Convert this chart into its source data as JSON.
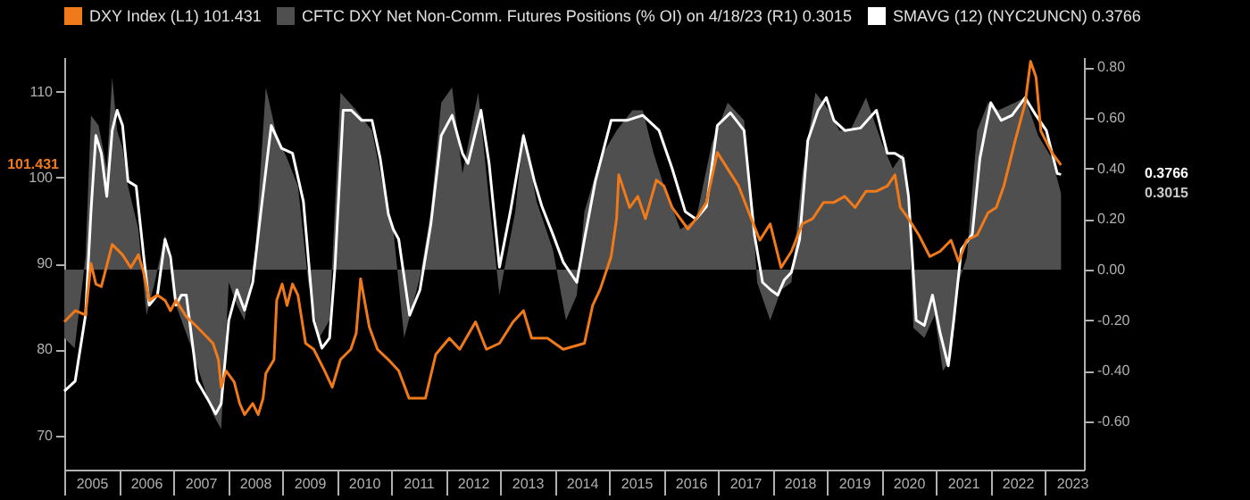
{
  "chart_data": {
    "type": "line",
    "legend": "top left",
    "grid": false,
    "xlim": [
      2005,
      2023.72
    ],
    "xticks": [
      {
        "value": 2005,
        "label": null
      },
      {
        "value": 2005.5,
        "label": "2005"
      },
      {
        "value": 2006,
        "label": null
      },
      {
        "value": 2006.5,
        "label": "2006"
      },
      {
        "value": 2007,
        "label": null
      },
      {
        "value": 2007.5,
        "label": "2007"
      },
      {
        "value": 2008,
        "label": null
      },
      {
        "value": 2008.5,
        "label": "2008"
      },
      {
        "value": 2009,
        "label": null
      },
      {
        "value": 2009.5,
        "label": "2009"
      },
      {
        "value": 2010,
        "label": null
      },
      {
        "value": 2010.5,
        "label": "2010"
      },
      {
        "value": 2011,
        "label": null
      },
      {
        "value": 2011.5,
        "label": "2011"
      },
      {
        "value": 2012,
        "label": null
      },
      {
        "value": 2012.5,
        "label": "2012"
      },
      {
        "value": 2013,
        "label": null
      },
      {
        "value": 2013.5,
        "label": "2013"
      },
      {
        "value": 2014,
        "label": null
      },
      {
        "value": 2014.5,
        "label": "2014"
      },
      {
        "value": 2015,
        "label": null
      },
      {
        "value": 2015.5,
        "label": "2015"
      },
      {
        "value": 2016,
        "label": null
      },
      {
        "value": 2016.5,
        "label": "2016"
      },
      {
        "value": 2017,
        "label": null
      },
      {
        "value": 2017.5,
        "label": "2017"
      },
      {
        "value": 2018,
        "label": null
      },
      {
        "value": 2018.5,
        "label": "2018"
      },
      {
        "value": 2019,
        "label": null
      },
      {
        "value": 2019.5,
        "label": "2019"
      },
      {
        "value": 2020,
        "label": null
      },
      {
        "value": 2020.5,
        "label": "2020"
      },
      {
        "value": 2021,
        "label": null
      },
      {
        "value": 2021.5,
        "label": "2021"
      },
      {
        "value": 2022,
        "label": null
      },
      {
        "value": 2022.5,
        "label": "2022"
      },
      {
        "value": 2023,
        "label": null
      },
      {
        "value": 2023.5,
        "label": "2023"
      }
    ],
    "ylim": [
      66,
      114
    ],
    "yticks": [
      70,
      80,
      90,
      100,
      110
    ],
    "y2lim": [
      -0.79,
      0.84
    ],
    "y2ticks": [
      {
        "value": -0.6,
        "label": "-0.60"
      },
      {
        "value": -0.4,
        "label": "-0.40"
      },
      {
        "value": -0.2,
        "label": "-0.20"
      },
      {
        "value": 0,
        "label": "0.00"
      },
      {
        "value": 0.2,
        "label": "0.20"
      },
      {
        "value": 0.4,
        "label": "0.40"
      },
      {
        "value": 0.6,
        "label": "0.60"
      },
      {
        "value": 0.8,
        "label": "0.80"
      }
    ],
    "annotations": [
      "101.431",
      "0.3015",
      "0.3766"
    ],
    "series": [
      {
        "name": "DXY Index (L1) 101.431",
        "color": "#f07a1a",
        "x": [
          2005.0,
          2005.2,
          2005.39,
          2005.49,
          2005.58,
          2005.68,
          2005.88,
          2006.07,
          2006.22,
          2006.36,
          2006.46,
          2006.56,
          2006.71,
          2006.85,
          2006.95,
          2007.05,
          2007.24,
          2007.44,
          2007.73,
          2007.83,
          2007.88,
          2007.97,
          2008.12,
          2008.22,
          2008.31,
          2008.46,
          2008.56,
          2008.65,
          2008.7,
          2008.85,
          2008.9,
          2009.0,
          2009.09,
          2009.19,
          2009.29,
          2009.43,
          2009.58,
          2009.78,
          2009.92,
          2010.07,
          2010.26,
          2010.36,
          2010.44,
          2010.6,
          2010.75,
          2010.95,
          2011.14,
          2011.33,
          2011.63,
          2011.82,
          2012.07,
          2012.26,
          2012.55,
          2012.75,
          2012.99,
          2013.24,
          2013.43,
          2013.58,
          2013.87,
          2014.16,
          2014.55,
          2014.7,
          2014.84,
          2015.04,
          2015.14,
          2015.18,
          2015.38,
          2015.53,
          2015.67,
          2015.87,
          2016.01,
          2016.16,
          2016.31,
          2016.45,
          2016.6,
          2016.79,
          2016.99,
          2017.18,
          2017.38,
          2017.57,
          2017.77,
          2017.96,
          2018.16,
          2018.35,
          2018.55,
          2018.74,
          2018.94,
          2019.13,
          2019.33,
          2019.52,
          2019.72,
          2019.91,
          2020.11,
          2020.25,
          2020.35,
          2020.5,
          2020.69,
          2020.89,
          2021.08,
          2021.28,
          2021.42,
          2021.57,
          2021.76,
          2021.96,
          2022.11,
          2022.25,
          2022.45,
          2022.64,
          2022.74,
          2022.84,
          2022.93,
          2023.13,
          2023.3
        ],
        "values": [
          83.2,
          84.5,
          84,
          90,
          87.6,
          87.3,
          92.2,
          91,
          89.5,
          91,
          88.9,
          85.7,
          86.3,
          85.7,
          84.5,
          85.7,
          83.8,
          82.6,
          80.7,
          78.8,
          75.6,
          77.5,
          76.2,
          73.7,
          72.4,
          73.7,
          72.4,
          74.3,
          77.2,
          78.8,
          85.7,
          87.6,
          85.1,
          87.6,
          86.3,
          80.7,
          80,
          77.5,
          75.6,
          78.8,
          80,
          81.9,
          88.2,
          82.6,
          80,
          78.8,
          77.5,
          74.3,
          74.3,
          79.4,
          81.3,
          80,
          83.2,
          80,
          80.7,
          83.2,
          84.5,
          81.3,
          81.3,
          80,
          80.7,
          85.1,
          87,
          90.8,
          95.2,
          100.3,
          96.5,
          97.8,
          95.2,
          99.7,
          99,
          96.5,
          95.2,
          94,
          95.2,
          97.1,
          102.9,
          101,
          99,
          95.9,
          92.7,
          94.6,
          89.5,
          91.4,
          94.6,
          95.2,
          97.1,
          97.1,
          97.8,
          96.5,
          98.4,
          98.4,
          99,
          100.3,
          96.5,
          95.2,
          93.3,
          90.8,
          91.4,
          92.7,
          90.2,
          92.7,
          93.3,
          95.9,
          96.5,
          99,
          104.1,
          108.6,
          113.5,
          111.7,
          105.4,
          102.9,
          101.431
        ]
      },
      {
        "name": "CFTC DXY Net Non-Comm. Futures Positions (% OI) on 4/18/23 (R1) 0.3015",
        "type": "area",
        "axis": "y2",
        "color": "#4f4f4f",
        "x": [
          2005.0,
          2005.19,
          2005.39,
          2005.49,
          2005.63,
          2005.78,
          2005.88,
          2005.97,
          2006.07,
          2006.17,
          2006.36,
          2006.51,
          2006.66,
          2006.85,
          2007.05,
          2007.34,
          2007.53,
          2007.73,
          2007.88,
          2008.02,
          2008.17,
          2008.31,
          2008.51,
          2008.7,
          2008.9,
          2009.09,
          2009.29,
          2009.48,
          2009.68,
          2009.87,
          2010.07,
          2010.36,
          2010.65,
          2010.85,
          2011.04,
          2011.24,
          2011.53,
          2011.73,
          2011.92,
          2012.12,
          2012.31,
          2012.6,
          2012.8,
          2012.99,
          2013.28,
          2013.43,
          2013.67,
          2013.97,
          2014.21,
          2014.41,
          2014.55,
          2014.84,
          2015.14,
          2015.43,
          2015.62,
          2015.82,
          2016.01,
          2016.31,
          2016.6,
          2016.89,
          2017.18,
          2017.48,
          2017.67,
          2017.72,
          2017.96,
          2018.16,
          2018.35,
          2018.55,
          2018.79,
          2019.04,
          2019.23,
          2019.43,
          2019.72,
          2020.01,
          2020.21,
          2020.4,
          2020.5,
          2020.59,
          2020.79,
          2020.98,
          2021.13,
          2021.28,
          2021.42,
          2021.57,
          2021.76,
          2021.96,
          2022.15,
          2022.45,
          2022.64,
          2022.88,
          2023.13,
          2023.3
        ],
        "values": [
          -0.27,
          -0.31,
          0.05,
          0.61,
          0.57,
          0.4,
          0.76,
          0.55,
          0.48,
          0.33,
          0.16,
          -0.18,
          -0.05,
          0.14,
          -0.14,
          -0.31,
          -0.44,
          -0.57,
          -0.63,
          -0.05,
          -0.14,
          -0.2,
          0.08,
          0.72,
          0.53,
          0.44,
          0.33,
          -0.05,
          -0.27,
          -0.2,
          0.7,
          0.63,
          0.55,
          0.33,
          0.16,
          -0.27,
          -0.03,
          0.23,
          0.66,
          0.72,
          0.38,
          0.7,
          0.27,
          -0.1,
          0.23,
          0.55,
          0.27,
          0.08,
          -0.2,
          -0.1,
          0.23,
          0.44,
          0.55,
          0.63,
          0.63,
          0.46,
          0.33,
          0.16,
          0.2,
          0.5,
          0.66,
          0.59,
          0.12,
          -0.05,
          -0.2,
          -0.08,
          -0.05,
          0.38,
          0.7,
          0.63,
          0.55,
          0.55,
          0.68,
          0.5,
          0.4,
          0.46,
          0.25,
          -0.23,
          -0.27,
          -0.18,
          -0.4,
          -0.35,
          -0.05,
          0.05,
          0.55,
          0.66,
          0.63,
          0.66,
          0.68,
          0.53,
          0.44,
          0.3015
        ]
      },
      {
        "name": "SMAVG (12) (NYC2UNCN) 0.3766",
        "type": "line",
        "axis": "y2",
        "color": "#ffffff",
        "x": [
          2005.0,
          2005.2,
          2005.39,
          2005.49,
          2005.58,
          2005.68,
          2005.78,
          2005.88,
          2005.97,
          2006.07,
          2006.17,
          2006.32,
          2006.46,
          2006.56,
          2006.71,
          2006.85,
          2006.95,
          2007.05,
          2007.15,
          2007.24,
          2007.44,
          2007.63,
          2007.78,
          2007.88,
          2008.02,
          2008.17,
          2008.31,
          2008.46,
          2008.61,
          2008.8,
          2008.99,
          2009.19,
          2009.39,
          2009.58,
          2009.73,
          2009.87,
          2009.97,
          2010.12,
          2010.27,
          2010.46,
          2010.65,
          2010.8,
          2010.95,
          2011.04,
          2011.14,
          2011.34,
          2011.53,
          2011.73,
          2011.92,
          2012.12,
          2012.31,
          2012.41,
          2012.65,
          2012.8,
          2012.99,
          2013.19,
          2013.43,
          2013.63,
          2013.77,
          2013.97,
          2014.16,
          2014.41,
          2014.55,
          2014.75,
          2015.04,
          2015.33,
          2015.62,
          2015.92,
          2016.16,
          2016.4,
          2016.6,
          2016.79,
          2016.99,
          2017.23,
          2017.48,
          2017.67,
          2017.82,
          2017.97,
          2018.1,
          2018.22,
          2018.35,
          2018.5,
          2018.65,
          2018.84,
          2018.99,
          2019.13,
          2019.33,
          2019.62,
          2019.91,
          2020.11,
          2020.25,
          2020.4,
          2020.5,
          2020.64,
          2020.79,
          2020.94,
          2021.08,
          2021.23,
          2021.33,
          2021.47,
          2021.67,
          2021.81,
          2022.01,
          2022.2,
          2022.4,
          2022.64,
          2022.84,
          2023.03,
          2023.23,
          2023.3
        ],
        "values": [
          -0.48,
          -0.44,
          -0.18,
          0.23,
          0.53,
          0.46,
          0.29,
          0.55,
          0.63,
          0.57,
          0.35,
          0.33,
          0.05,
          -0.14,
          -0.1,
          0.12,
          0.05,
          -0.14,
          -0.1,
          -0.1,
          -0.44,
          -0.51,
          -0.57,
          -0.53,
          -0.2,
          -0.08,
          -0.16,
          -0.05,
          0.23,
          0.57,
          0.48,
          0.46,
          0.27,
          -0.2,
          -0.31,
          -0.27,
          0.01,
          0.63,
          0.63,
          0.59,
          0.59,
          0.44,
          0.22,
          0.16,
          0.12,
          -0.18,
          -0.08,
          0.18,
          0.53,
          0.61,
          0.46,
          0.42,
          0.63,
          0.42,
          0.01,
          0.23,
          0.53,
          0.35,
          0.25,
          0.14,
          0.03,
          -0.05,
          0.12,
          0.35,
          0.59,
          0.59,
          0.61,
          0.55,
          0.4,
          0.23,
          0.2,
          0.25,
          0.57,
          0.62,
          0.55,
          0.14,
          -0.05,
          -0.08,
          -0.1,
          -0.04,
          -0.01,
          0.12,
          0.51,
          0.63,
          0.68,
          0.59,
          0.55,
          0.56,
          0.63,
          0.46,
          0.46,
          0.44,
          0.29,
          -0.2,
          -0.22,
          -0.1,
          -0.25,
          -0.38,
          -0.2,
          0.08,
          0.14,
          0.44,
          0.66,
          0.59,
          0.61,
          0.68,
          0.61,
          0.55,
          0.38,
          0.3766
        ]
      }
    ]
  }
}
